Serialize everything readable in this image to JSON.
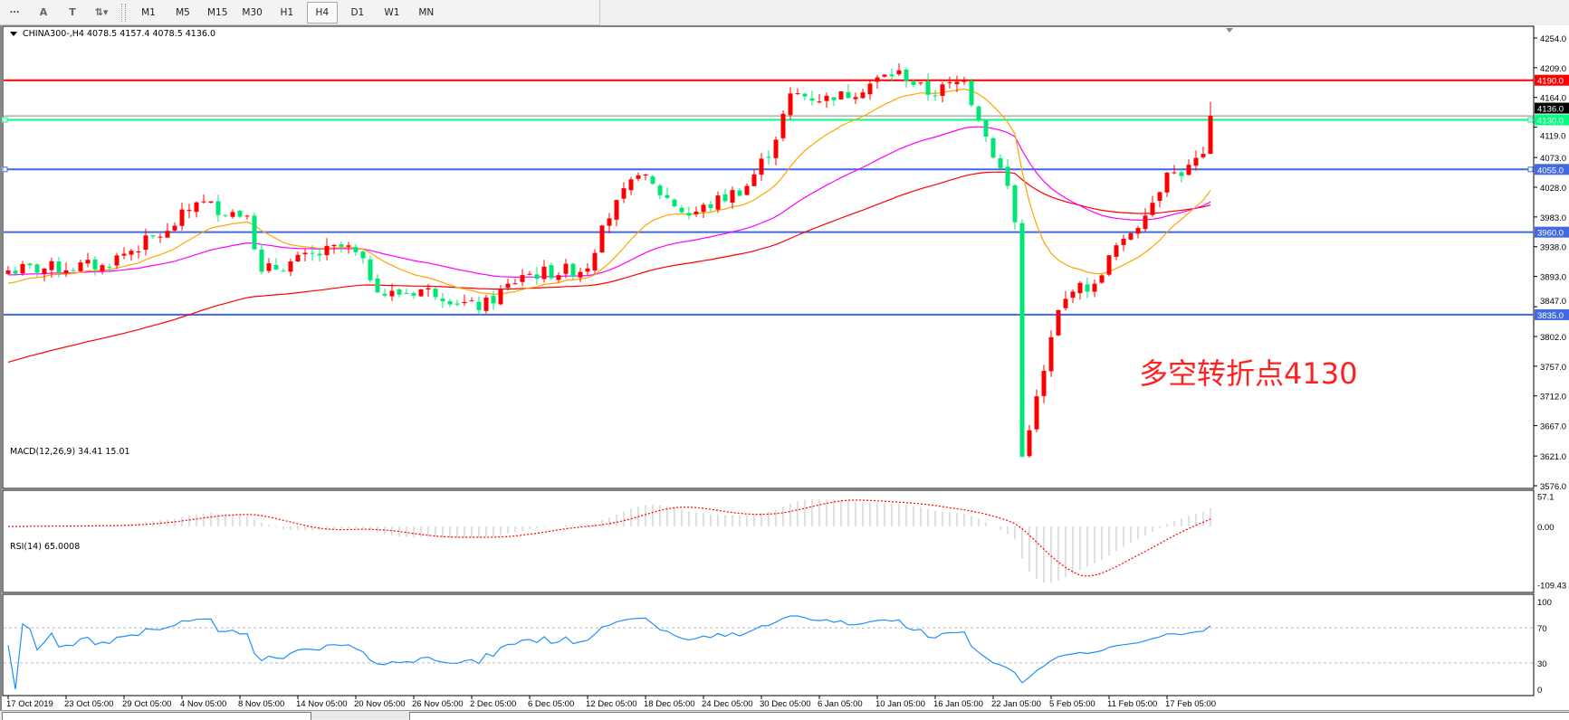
{
  "toolbar": {
    "tools": [
      {
        "name": "crosshair-grid",
        "label": "⋯"
      },
      {
        "name": "text",
        "label": "A"
      },
      {
        "name": "text-label",
        "label": "T"
      },
      {
        "name": "arrows",
        "label": "⇅▾"
      }
    ],
    "timeframes": [
      "M1",
      "M5",
      "M15",
      "M30",
      "H1",
      "H4",
      "D1",
      "W1",
      "MN"
    ],
    "active_timeframe": "H4"
  },
  "chart": {
    "symbol_info": "CHINA300-,H4  4078.5 4157.4 4078.5 4136.0",
    "annotation": "多空转折点4130",
    "colors": {
      "bull": "#ff0000",
      "bear": "#00e676",
      "ma_fast": "#ffa500",
      "ma_mid": "#ff00ff",
      "ma_slow": "#ff0000",
      "rsi": "#1e90ff",
      "macd_hist": "#c0c0c0",
      "macd_signal": "#ff0000"
    }
  },
  "chart_data": {
    "type": "candlestick",
    "price_ticks": [
      "4254.0",
      "4209.0",
      "4164.0",
      "4119.0",
      "4073.0",
      "4028.0",
      "3983.0",
      "3938.0",
      "3893.0",
      "3847.0",
      "3802.0",
      "3757.0",
      "3712.0",
      "3667.0",
      "3621.0",
      "3576.0"
    ],
    "price_range": [
      3576,
      4254
    ],
    "current_price": "4136.0",
    "levels": [
      {
        "price": 4190,
        "label": "4190.0",
        "color": "#ff0000"
      },
      {
        "price": 4130,
        "label": "4130.0",
        "color": "#00ff7f"
      },
      {
        "price": 4055,
        "label": "4055.0",
        "color": "#4169e1"
      },
      {
        "price": 3960,
        "label": "3960.0",
        "color": "#4169e1"
      },
      {
        "price": 3835,
        "label": "3835.0",
        "color": "#4169e1"
      }
    ],
    "date_labels": [
      "17 Oct 2019",
      "23 Oct 05:00",
      "29 Oct 05:00",
      "4 Nov 05:00",
      "8 Nov 05:00",
      "14 Nov 05:00",
      "20 Nov 05:00",
      "26 Nov 05:00",
      "2 Dec 05:00",
      "6 Dec 05:00",
      "12 Dec 05:00",
      "18 Dec 05:00",
      "24 Dec 05:00",
      "30 Dec 05:00",
      "6 Jan 05:00",
      "10 Jan 05:00",
      "16 Jan 05:00",
      "22 Jan 05:00",
      "5 Feb 05:00",
      "11 Feb 05:00",
      "17 Feb 05:00"
    ],
    "close_path": [
      [
        0,
        3902
      ],
      [
        13,
        3910
      ],
      [
        22,
        3962
      ],
      [
        26,
        4005
      ],
      [
        33,
        3985
      ],
      [
        35,
        3900
      ],
      [
        47,
        3940
      ],
      [
        52,
        3864
      ],
      [
        58,
        3875
      ],
      [
        65,
        3842
      ],
      [
        71,
        3895
      ],
      [
        80,
        3905
      ],
      [
        82,
        3970
      ],
      [
        87,
        4046
      ],
      [
        94,
        3985
      ],
      [
        102,
        4030
      ],
      [
        106,
        4100
      ],
      [
        108,
        4170
      ],
      [
        114,
        4160
      ],
      [
        123,
        4205
      ],
      [
        127,
        4168
      ],
      [
        132,
        4190
      ],
      [
        134,
        4130
      ],
      [
        138,
        4030
      ],
      [
        139,
        3975
      ],
      [
        140,
        3620
      ],
      [
        141,
        3660
      ],
      [
        143,
        3750
      ],
      [
        145,
        3842
      ],
      [
        147,
        3870
      ],
      [
        150,
        3882
      ],
      [
        152,
        3925
      ],
      [
        154,
        3950
      ],
      [
        157,
        3985
      ],
      [
        160,
        4050
      ],
      [
        162,
        4045
      ],
      [
        165,
        4078.5
      ],
      [
        166,
        4136
      ]
    ],
    "last_bar": {
      "open": 4078.5,
      "high": 4157.4,
      "low": 4078.5,
      "close": 4136.0
    }
  },
  "macd": {
    "label": "MACD(12,26,9) 34.41 15.01",
    "ticks": [
      "57.1",
      "0.00",
      "-109.43"
    ]
  },
  "rsi": {
    "label": "RSI(14) 65.0008",
    "ticks": [
      "100",
      "70",
      "30",
      "0"
    ]
  }
}
